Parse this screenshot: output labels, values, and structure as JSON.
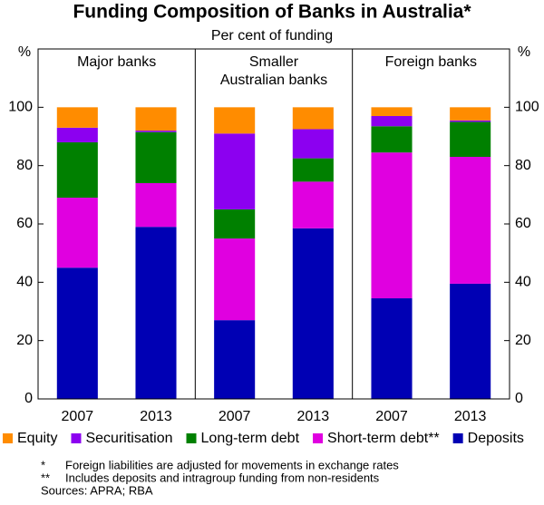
{
  "chart_data": {
    "type": "stacked_bar_panels",
    "title": "Funding Composition of Banks in Australia*",
    "subtitle": "Per cent of funding",
    "y_label": "%",
    "ylim": [
      0,
      120
    ],
    "yticks": [
      0,
      20,
      40,
      60,
      80,
      100
    ],
    "series": [
      {
        "name": "Equity",
        "color": "#ff8c00"
      },
      {
        "name": "Securitisation",
        "color": "#8c00f0"
      },
      {
        "name": "Long-term debt",
        "color": "#008000"
      },
      {
        "name": "Short-term debt**",
        "color": "#e000e0"
      },
      {
        "name": "Deposits",
        "color": "#0000b4"
      }
    ],
    "panels": [
      {
        "title": [
          "Major banks"
        ],
        "categories": [
          "2007",
          "2013"
        ],
        "values": [
          [
            7,
            8
          ],
          [
            5,
            0.5
          ],
          [
            19,
            17.5
          ],
          [
            24,
            15
          ],
          [
            45,
            59
          ]
        ]
      },
      {
        "title": [
          "Smaller",
          "Australian banks"
        ],
        "categories": [
          "2007",
          "2013"
        ],
        "values": [
          [
            9,
            7.5
          ],
          [
            26,
            10
          ],
          [
            10,
            8
          ],
          [
            28,
            16
          ],
          [
            27,
            58.5
          ]
        ]
      },
      {
        "title": [
          "Foreign banks"
        ],
        "categories": [
          "2007",
          "2013"
        ],
        "values": [
          [
            3,
            4.5
          ],
          [
            3.5,
            0.5
          ],
          [
            9,
            12
          ],
          [
            50,
            43.5
          ],
          [
            34.5,
            39.5
          ]
        ]
      }
    ],
    "notes": [
      {
        "mark": "*",
        "text": "Foreign liabilities are adjusted for movements in exchange rates"
      },
      {
        "mark": "**",
        "text": "Includes deposits and intragroup funding from non-residents"
      }
    ],
    "source": "Sources: APRA; RBA"
  }
}
